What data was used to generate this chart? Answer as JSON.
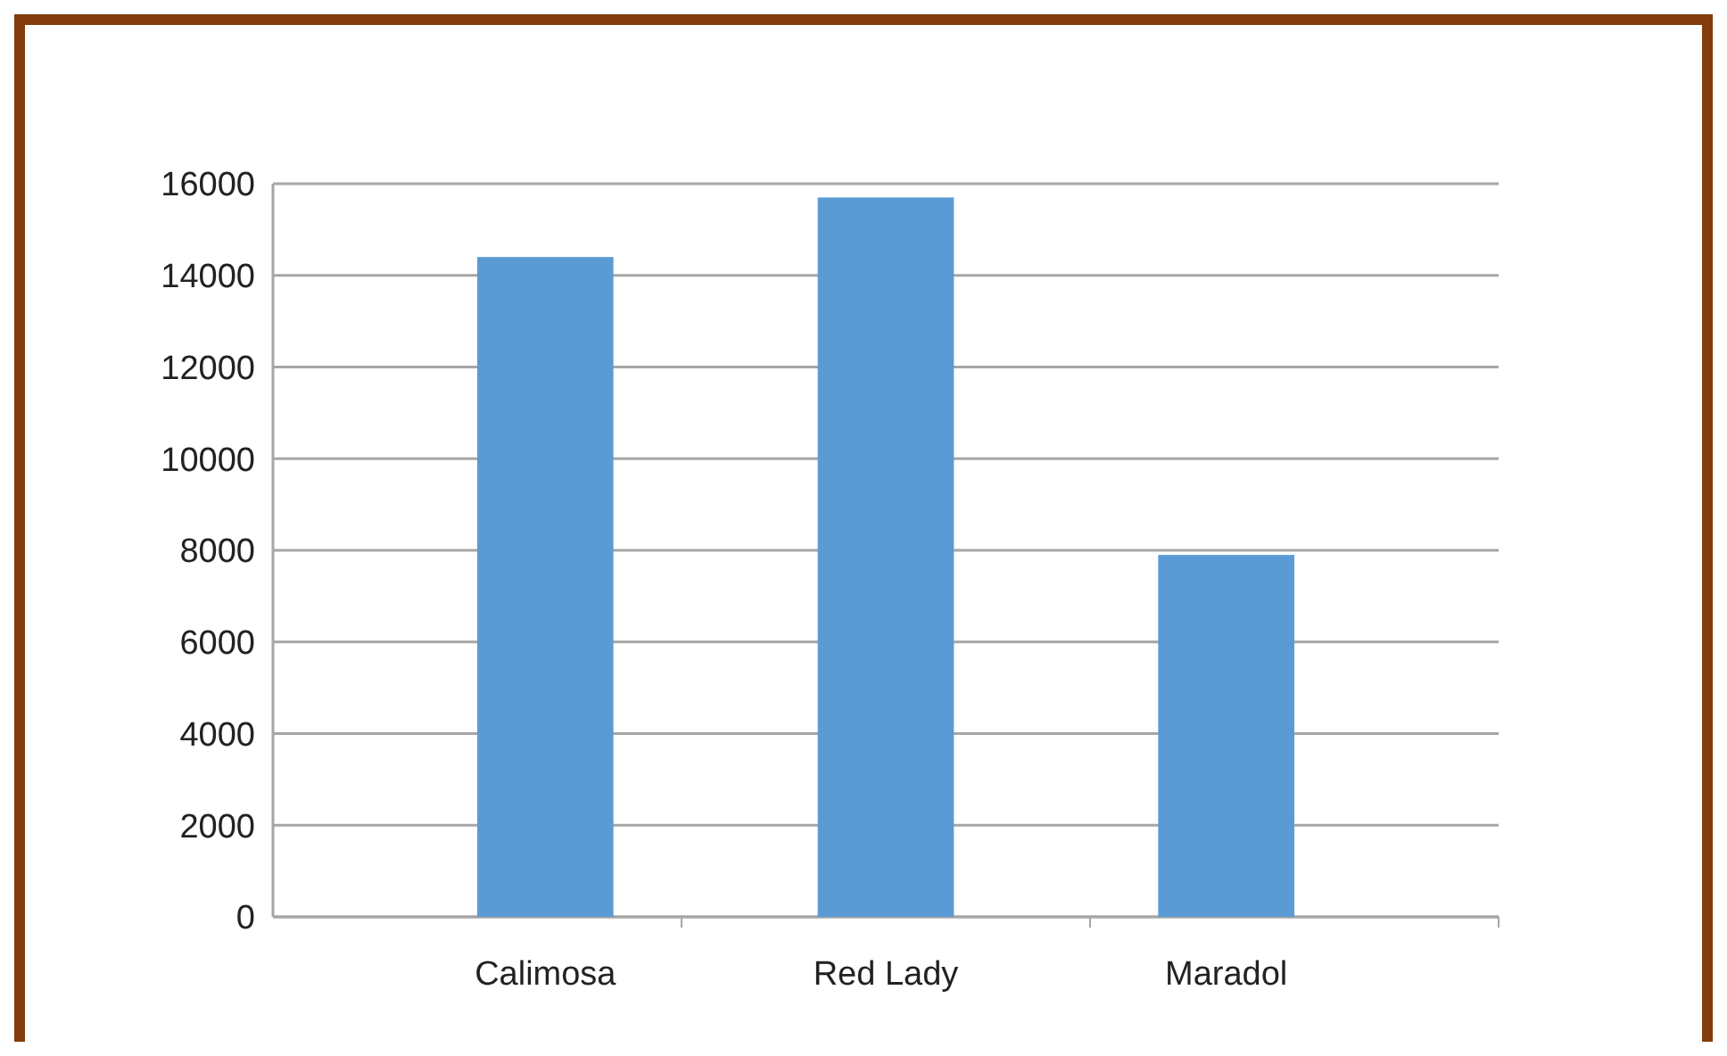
{
  "chart_data": {
    "type": "bar",
    "categories": [
      "Calimosa",
      "Red Lady",
      "Maradol"
    ],
    "values": [
      14400,
      15700,
      7900
    ],
    "color": "#5b9bd5",
    "ylim": [
      0,
      16000
    ],
    "yticks": [
      0,
      2000,
      4000,
      6000,
      8000,
      10000,
      12000,
      14000,
      16000
    ],
    "grid": "y"
  }
}
